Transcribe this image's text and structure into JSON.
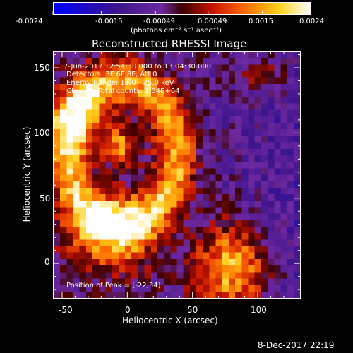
{
  "colorbar": {
    "tick_labels": [
      "-0.0024",
      "-0.0015",
      "-0.00049",
      "0.00049",
      "0.0015",
      "0.0024"
    ],
    "tick_values": [
      -0.0024,
      -0.0015,
      -0.00049,
      0.00049,
      0.0015,
      0.0024
    ],
    "range": [
      -0.0024,
      0.0024
    ],
    "units_label": "(photons cm⁻² s⁻¹ asec⁻²)",
    "colormap": "blue-purple-red-orange-yellow-white"
  },
  "plot": {
    "title": "Reconstructed RHESSI Image",
    "annotation_time": "7-Jun-2017 12:54:30.000 to 13:04:30.000",
    "annotation_detectors": "Detectors: 3F 6F 8F, Att 0",
    "annotation_energy": "Energy Range: 12.0 - 25.0 keV",
    "annotation_method": "Clean     Total counts: 1.54E+04",
    "annotation_peak": "Position of Peak = [-22,34]",
    "xlabel": "Heliocentric X (arcsec)",
    "ylabel": "Heliocentric Y (arcsec)",
    "x_ticks": [
      "-50",
      "0",
      "50",
      "100"
    ],
    "y_ticks": [
      "0",
      "50",
      "100",
      "150"
    ],
    "footer_timestamp": "8-Dec-2017 22:19"
  },
  "chart_data": {
    "type": "heatmap",
    "title": "Reconstructed RHESSI Image",
    "xlabel": "Heliocentric X (arcsec)",
    "ylabel": "Heliocentric Y (arcsec)",
    "xlim": [
      -57,
      133
    ],
    "ylim": [
      -27,
      163
    ],
    "x_tick_values": [
      -50,
      0,
      50,
      100
    ],
    "y_tick_values": [
      0,
      50,
      100,
      150
    ],
    "colorbar_range": [
      -0.0024,
      0.0024
    ],
    "peak_position": [
      -22,
      34
    ],
    "grid": false
  },
  "colors": {
    "background": "#000000",
    "foreground": "#ffffff"
  }
}
